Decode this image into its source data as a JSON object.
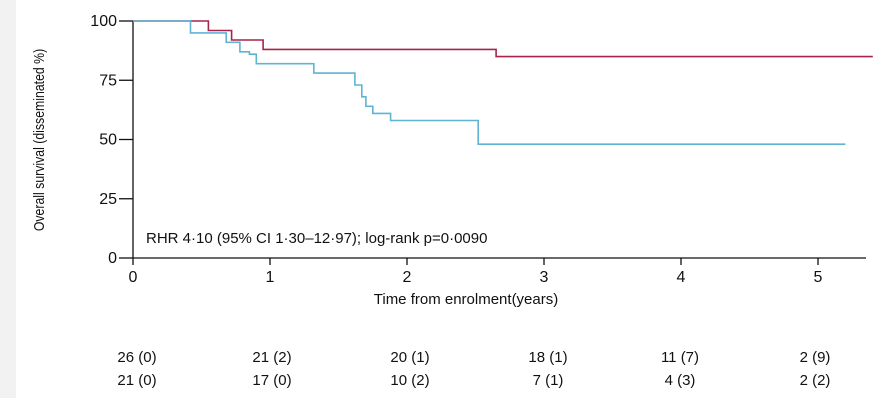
{
  "chart_data": {
    "type": "line",
    "title": "",
    "xlabel": "Time from enrolment(years)",
    "ylabel": "Overall survival (disseminated %)",
    "xlim": [
      0,
      5.4
    ],
    "ylim": [
      0,
      100
    ],
    "x_ticks": [
      0,
      1,
      2,
      3,
      4,
      5
    ],
    "y_ticks": [
      0,
      25,
      50,
      75,
      100
    ],
    "grid": false,
    "annotation": "RHR 4·10 (95% CI 1·30–12·97); log-rank p=0·0090",
    "series": [
      {
        "color": "#a6234a",
        "step": true,
        "x": [
          0,
          0.55,
          0.55,
          0.72,
          0.72,
          0.78,
          0.78,
          0.95,
          0.95,
          2.65,
          2.65,
          5.4
        ],
        "y": [
          100,
          100,
          96,
          96,
          92,
          92,
          92,
          92,
          88,
          88,
          85,
          85
        ]
      },
      {
        "color": "#5fb4d4",
        "step": true,
        "x": [
          0,
          0.42,
          0.42,
          0.68,
          0.68,
          0.78,
          0.78,
          0.85,
          0.85,
          0.9,
          0.9,
          1.32,
          1.32,
          1.62,
          1.62,
          1.67,
          1.67,
          1.7,
          1.7,
          1.75,
          1.75,
          1.88,
          1.88,
          1.93,
          1.93,
          2.52,
          2.52,
          5.2
        ],
        "y": [
          100,
          100,
          95,
          95,
          91,
          91,
          87,
          87,
          86,
          86,
          82,
          82,
          78,
          78,
          73,
          73,
          68,
          68,
          64,
          64,
          61,
          61,
          58,
          58,
          58,
          58,
          48,
          48
        ]
      }
    ],
    "risk_table": {
      "times": [
        0,
        1,
        2,
        3,
        4,
        5
      ],
      "rows": [
        [
          "26 (0)",
          "21 (2)",
          "20 (1)",
          "18 (1)",
          "11 (7)",
          "2 (9)"
        ],
        [
          "21 (0)",
          "17 (0)",
          "10 (2)",
          "7 (1)",
          "4 (3)",
          "2 (2)"
        ]
      ]
    }
  }
}
